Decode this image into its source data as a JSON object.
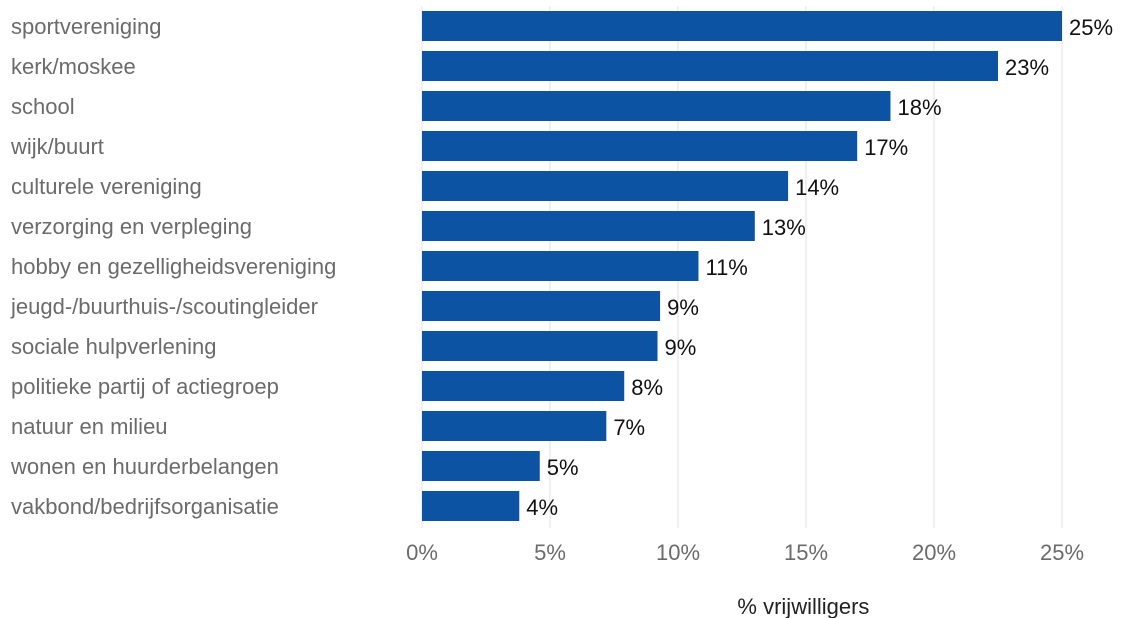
{
  "chart_data": {
    "type": "bar",
    "orientation": "horizontal",
    "categories": [
      "sportvereniging",
      "kerk/moskee",
      "school",
      "wijk/buurt",
      "culturele vereniging",
      "verzorging en verpleging",
      "hobby en gezelligheidsvereniging",
      "jeugd-/buurthuis-/scoutingleider",
      "sociale hulpverlening",
      "politieke partij of actiegroep",
      "natuur en milieu",
      "wonen en huurderbelangen",
      "vakbond/bedrijfsorganisatie"
    ],
    "values": [
      25,
      22.5,
      18.3,
      17,
      14.3,
      13,
      10.8,
      9.3,
      9.2,
      7.9,
      7.2,
      4.6,
      3.8
    ],
    "value_labels": [
      "25%",
      "23%",
      "18%",
      "17%",
      "14%",
      "13%",
      "11%",
      "9%",
      "9%",
      "8%",
      "7%",
      "5%",
      "4%"
    ],
    "xlim": [
      0,
      25.5
    ],
    "xticks": [
      0,
      5,
      10,
      15,
      20,
      25
    ],
    "xtick_labels": [
      "0%",
      "5%",
      "10%",
      "15%",
      "20%",
      "25%"
    ],
    "xlabel": "% vrijwilligers",
    "ylabel": "",
    "title": "",
    "grid": "vertical",
    "bar_color": "#0d53a4"
  }
}
